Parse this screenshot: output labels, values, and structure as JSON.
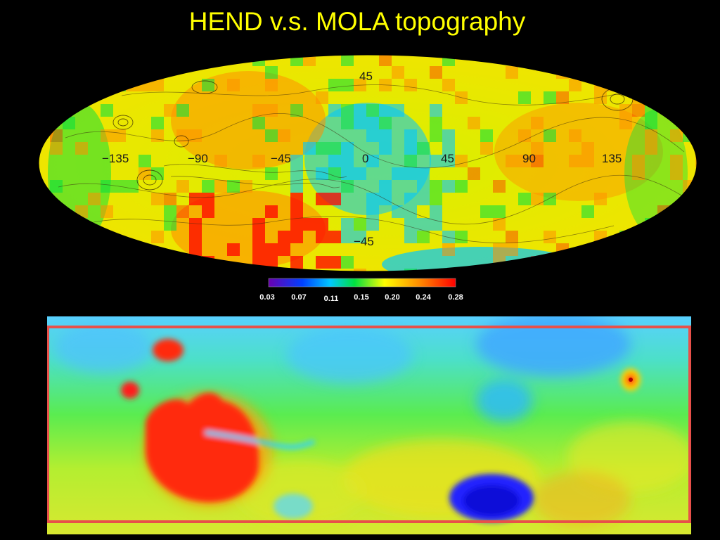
{
  "slide": {
    "title": "HEND v.s. MOLA topography"
  },
  "hend_map": {
    "projection": "equal-area ellipse (global)",
    "longitude_labels": [
      "−135",
      "−90",
      "−45",
      "0",
      "45",
      "90",
      "135"
    ],
    "latitude_labels": [
      "45",
      "−45"
    ],
    "colorbar": {
      "ticks": [
        "0.03",
        "0.07",
        "0.11",
        "0.15",
        "0.20",
        "0.24",
        "0.28"
      ],
      "colors": [
        "#6a00b0",
        "#0040ff",
        "#00c8ff",
        "#00e040",
        "#ffff00",
        "#ff9000",
        "#ff0000"
      ]
    }
  },
  "mola_map": {
    "projection": "cylindrical (global)",
    "frame_color": "#e8504a",
    "colors": {
      "low": "#1a1aff",
      "mid_low": "#30c8ff",
      "mid": "#3ce85a",
      "mid_high": "#f0f000",
      "high": "#ff2020"
    }
  }
}
